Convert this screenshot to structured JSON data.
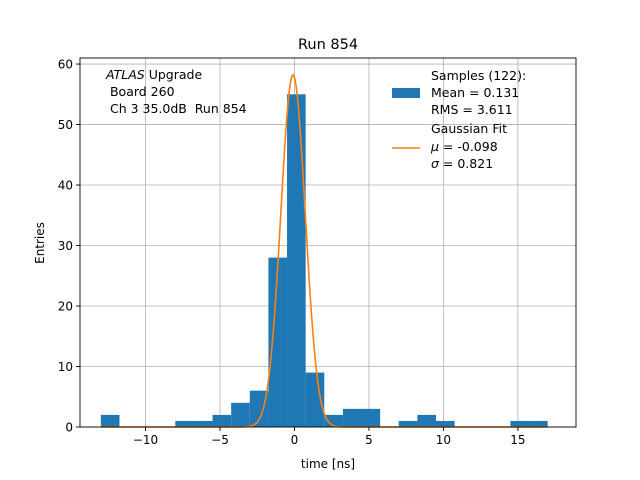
{
  "chart_data": {
    "type": "bar",
    "title": "Run 854",
    "xlabel": "time [ns]",
    "ylabel": "Entries",
    "xlim": [
      -14.4,
      18.9
    ],
    "ylim": [
      0,
      61
    ],
    "xticks": [
      -10,
      -5,
      0,
      5,
      10,
      15
    ],
    "xtick_labels": [
      "−10",
      "−5",
      "0",
      "5",
      "10",
      "15"
    ],
    "yticks": [
      0,
      10,
      20,
      30,
      40,
      50,
      60
    ],
    "ytick_labels": [
      "0",
      "10",
      "20",
      "30",
      "40",
      "50",
      "60"
    ],
    "grid": true,
    "legend_position": "top-right",
    "histogram": {
      "name": "Samples (122):",
      "color": "#1f77b4",
      "bin_edges": [
        -13.0,
        -11.75,
        -10.5,
        -9.25,
        -8.0,
        -6.75,
        -5.5,
        -4.25,
        -3.0,
        -1.75,
        -0.5,
        0.75,
        2.0,
        3.25,
        4.5,
        5.75,
        7.0,
        8.25,
        9.5,
        10.75,
        12.0,
        13.25,
        14.5,
        15.75,
        17.0
      ],
      "counts": [
        2,
        0,
        0,
        0,
        1,
        1,
        2,
        4,
        6,
        28,
        55,
        9,
        2,
        3,
        3,
        0,
        1,
        2,
        1,
        0,
        0,
        0,
        1,
        1
      ]
    },
    "gaussian_fit": {
      "name": "Gaussian Fit",
      "color": "#ff7f0e",
      "mu": -0.098,
      "sigma": 0.821,
      "amplitude": 58.2,
      "x_range": [
        -13.0,
        17.0
      ]
    },
    "legend": {
      "samples": [
        "Samples (122):",
        "Mean = 0.131",
        "RMS = 3.611"
      ],
      "fit": {
        "line1": "Gaussian Fit",
        "mu_symbol": "μ",
        "mu_value": " = -0.098",
        "sigma_symbol": "σ",
        "sigma_value": " = 0.821"
      }
    },
    "annotation": {
      "line1_italic": "ATLAS",
      "line1_rest": " Upgrade",
      "line2": " Board 260",
      "line3": " Ch 3 35.0dB  Run 854"
    }
  }
}
